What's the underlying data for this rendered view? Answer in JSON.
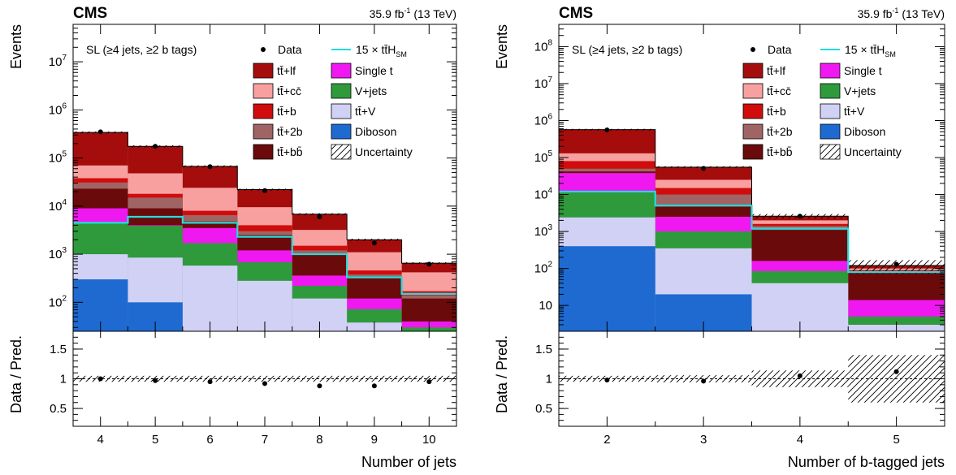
{
  "chart_data": [
    {
      "type": "bar",
      "stacked": true,
      "cms_label": "CMS",
      "lumi_value": "35.9 fb",
      "lumi_exp": "-1",
      "lumi_energy": "(13 TeV)",
      "category": "SL (≥4 jets, ≥2 b tags)",
      "xlabel": "Number of jets",
      "ylabel": "Events",
      "ratio_ylabel": "Data / Pred.",
      "y_scale": "log",
      "ylim": [
        25,
        60000000
      ],
      "ratio_ylim": [
        0.2,
        1.8
      ],
      "x_edges": [
        3.5,
        4.5,
        5.5,
        6.5,
        7.5,
        8.5,
        9.5,
        10.5
      ],
      "x_ticks": [
        "4",
        "5",
        "6",
        "7",
        "8",
        "9",
        "10"
      ],
      "y_ticks": [
        {
          "v": 100,
          "base": "10",
          "exp": "2"
        },
        {
          "v": 1000,
          "base": "10",
          "exp": "3"
        },
        {
          "v": 10000,
          "base": "10",
          "exp": "4"
        },
        {
          "v": 100000,
          "base": "10",
          "exp": "5"
        },
        {
          "v": 1000000,
          "base": "10",
          "exp": "6"
        },
        {
          "v": 10000000,
          "base": "10",
          "exp": "7"
        }
      ],
      "ratio_ticks": [
        "0.5",
        "1",
        "1.5"
      ],
      "legend_position": "top",
      "stack_totals": [
        {
          "name": "Diboson",
          "color": "#1e6ad1",
          "values": [
            300,
            100,
            25,
            25,
            25,
            25,
            25
          ]
        },
        {
          "name": "tt̄+V",
          "color": "#d1d1f5",
          "values": [
            1000,
            850,
            580,
            280,
            120,
            38,
            25
          ]
        },
        {
          "name": "V+jets",
          "color": "#2f9a3c",
          "values": [
            4500,
            3900,
            1700,
            680,
            220,
            72,
            30
          ]
        },
        {
          "name": "Single t",
          "color": "#f018f0",
          "values": [
            9000,
            4000,
            3500,
            1200,
            360,
            120,
            40
          ]
        },
        {
          "name": "tt̄+bb̄",
          "color": "#6b0a0a",
          "values": [
            23000,
            9000,
            4800,
            2500,
            1000,
            320,
            120
          ]
        },
        {
          "name": "tt̄+2b",
          "color": "#a06464",
          "values": [
            31000,
            15000,
            6500,
            3000,
            1200,
            380,
            140
          ]
        },
        {
          "name": "tt̄+b",
          "color": "#d00c0c",
          "values": [
            38000,
            18000,
            8000,
            4000,
            1500,
            460,
            170
          ]
        },
        {
          "name": "tt̄+cc̄",
          "color": "#f8a0a0",
          "values": [
            70000,
            48000,
            24000,
            9500,
            3200,
            1100,
            420
          ]
        },
        {
          "name": "tt̄+lf",
          "color": "#a50c0c",
          "values": [
            340000,
            175000,
            67000,
            22000,
            6800,
            2000,
            650
          ]
        }
      ],
      "signal": {
        "name": "15 × tt̄H",
        "sub": "SM",
        "color": "#22dddd",
        "values": [
          4500,
          6000,
          4500,
          2300,
          1000,
          330,
          150
        ]
      },
      "data": {
        "name": "Data",
        "x": [
          4,
          5,
          6,
          7,
          8,
          9,
          10
        ],
        "values": [
          350000,
          175000,
          66000,
          21000,
          6000,
          1700,
          620
        ]
      },
      "ratio": [
        1.0,
        0.97,
        0.95,
        0.92,
        0.88,
        0.88,
        0.95
      ],
      "ratio_unc": [
        0.05,
        0.05,
        0.05,
        0.05,
        0.05,
        0.05,
        0.05
      ],
      "uncertainty_label": "Uncertainty"
    },
    {
      "type": "bar",
      "stacked": true,
      "cms_label": "CMS",
      "lumi_value": "35.9 fb",
      "lumi_exp": "-1",
      "lumi_energy": "(13 TeV)",
      "category": "SL (≥4 jets, ≥2 b tags)",
      "xlabel": "Number of b-tagged jets",
      "ylabel": "Events",
      "ratio_ylabel": "Data / Pred.",
      "y_scale": "log",
      "ylim": [
        2,
        400000000
      ],
      "ratio_ylim": [
        0.2,
        1.8
      ],
      "x_edges": [
        1.5,
        2.5,
        3.5,
        4.5,
        5.5
      ],
      "x_ticks": [
        "2",
        "3",
        "4",
        "5"
      ],
      "y_ticks": [
        {
          "v": 10,
          "base": "10",
          "exp": ""
        },
        {
          "v": 100,
          "base": "10",
          "exp": "2"
        },
        {
          "v": 1000,
          "base": "10",
          "exp": "3"
        },
        {
          "v": 10000,
          "base": "10",
          "exp": "4"
        },
        {
          "v": 100000,
          "base": "10",
          "exp": "5"
        },
        {
          "v": 1000000,
          "base": "10",
          "exp": "6"
        },
        {
          "v": 10000000,
          "base": "10",
          "exp": "7"
        },
        {
          "v": 100000000,
          "base": "10",
          "exp": "8"
        }
      ],
      "ratio_ticks": [
        "0.5",
        "1",
        "1.5"
      ],
      "legend_position": "top",
      "stack_totals": [
        {
          "name": "Diboson",
          "color": "#1e6ad1",
          "values": [
            400,
            20,
            2,
            2
          ]
        },
        {
          "name": "tt̄+V",
          "color": "#d1d1f5",
          "values": [
            2400,
            350,
            40,
            3
          ]
        },
        {
          "name": "V+jets",
          "color": "#2f9a3c",
          "values": [
            12000,
            1000,
            85,
            5
          ]
        },
        {
          "name": "Single t",
          "color": "#f018f0",
          "values": [
            38000,
            2500,
            160,
            14
          ]
        },
        {
          "name": "tt̄+bb̄",
          "color": "#6b0a0a",
          "values": [
            42000,
            5000,
            1100,
            75
          ]
        },
        {
          "name": "tt̄+2b",
          "color": "#a06464",
          "values": [
            50000,
            10000,
            1400,
            85
          ]
        },
        {
          "name": "tt̄+b",
          "color": "#d00c0c",
          "values": [
            80000,
            15000,
            1600,
            90
          ]
        },
        {
          "name": "tt̄+cc̄",
          "color": "#f8a0a0",
          "values": [
            130000,
            25000,
            2000,
            100
          ]
        },
        {
          "name": "tt̄+lf",
          "color": "#a50c0c",
          "values": [
            570000,
            55000,
            2600,
            120
          ]
        }
      ],
      "signal": {
        "name": "15 × tt̄H",
        "sub": "SM",
        "color": "#22dddd",
        "values": [
          12000,
          5000,
          1200,
          80
        ]
      },
      "data": {
        "name": "Data",
        "x": [
          2,
          3,
          4,
          5
        ],
        "values": [
          560000,
          51000,
          2600,
          130
        ]
      },
      "ratio": [
        0.98,
        0.96,
        1.05,
        1.12
      ],
      "ratio_unc": [
        0.05,
        0.06,
        0.14,
        0.4
      ],
      "uncertainty_label": "Uncertainty"
    }
  ]
}
